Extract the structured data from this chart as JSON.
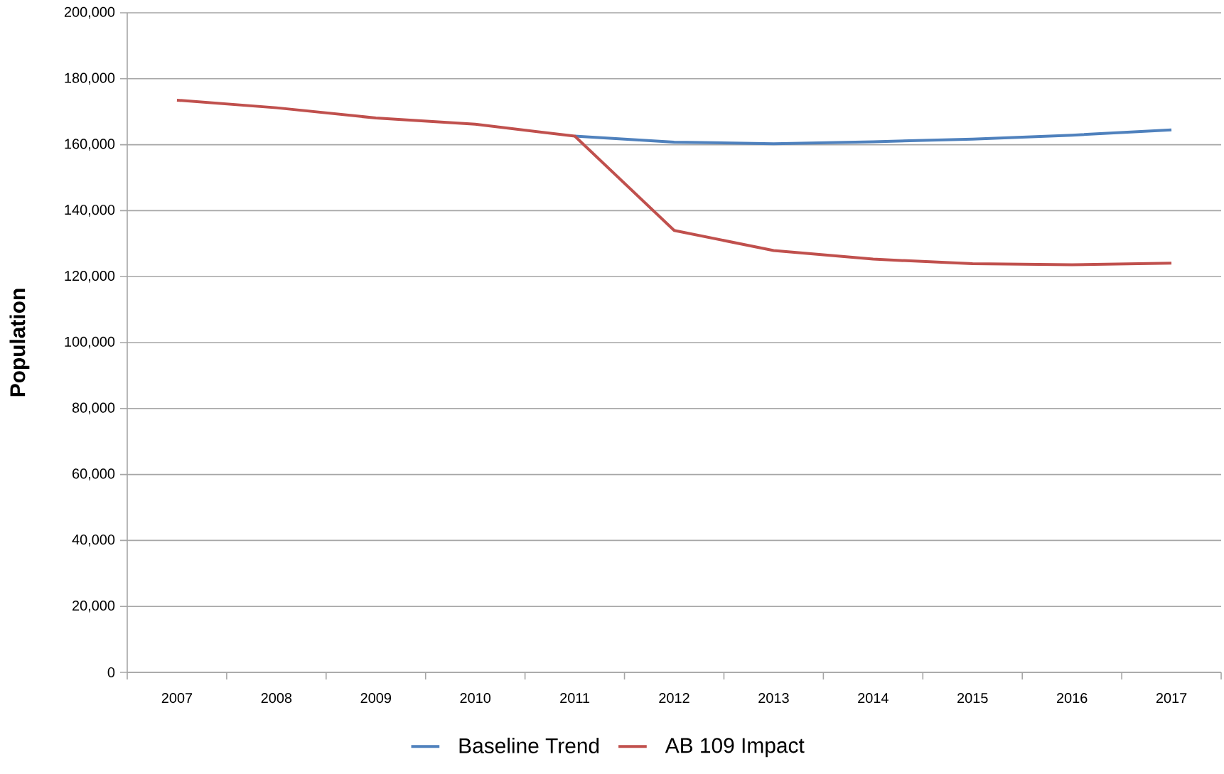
{
  "chart_data": {
    "type": "line",
    "ylabel": "Population",
    "categories": [
      "2007",
      "2008",
      "2009",
      "2010",
      "2011",
      "2012",
      "2013",
      "2014",
      "2015",
      "2016",
      "2017"
    ],
    "series": [
      {
        "name": "Baseline Trend",
        "color": "#4f81bd",
        "values": [
          null,
          null,
          null,
          null,
          162600,
          160800,
          160300,
          160900,
          161700,
          162900,
          164500
        ]
      },
      {
        "name": "AB 109 Impact",
        "color": "#c0504d",
        "values": [
          173500,
          171200,
          168100,
          166200,
          162600,
          134000,
          127900,
          125300,
          123900,
          123600,
          124100
        ]
      }
    ],
    "ylim": [
      0,
      200000
    ],
    "yticks": [
      {
        "value": 0,
        "label": "0"
      },
      {
        "value": 20000,
        "label": "20,000"
      },
      {
        "value": 40000,
        "label": "40,000"
      },
      {
        "value": 60000,
        "label": "60,000"
      },
      {
        "value": 80000,
        "label": "80,000"
      },
      {
        "value": 100000,
        "label": "100,000"
      },
      {
        "value": 120000,
        "label": "120,000"
      },
      {
        "value": 140000,
        "label": "140,000"
      },
      {
        "value": 160000,
        "label": "160,000"
      },
      {
        "value": 180000,
        "label": "180,000"
      },
      {
        "value": 200000,
        "label": "200,000"
      }
    ],
    "grid": "y",
    "legend": "bottom",
    "marker": "none",
    "line_style": "solid"
  }
}
